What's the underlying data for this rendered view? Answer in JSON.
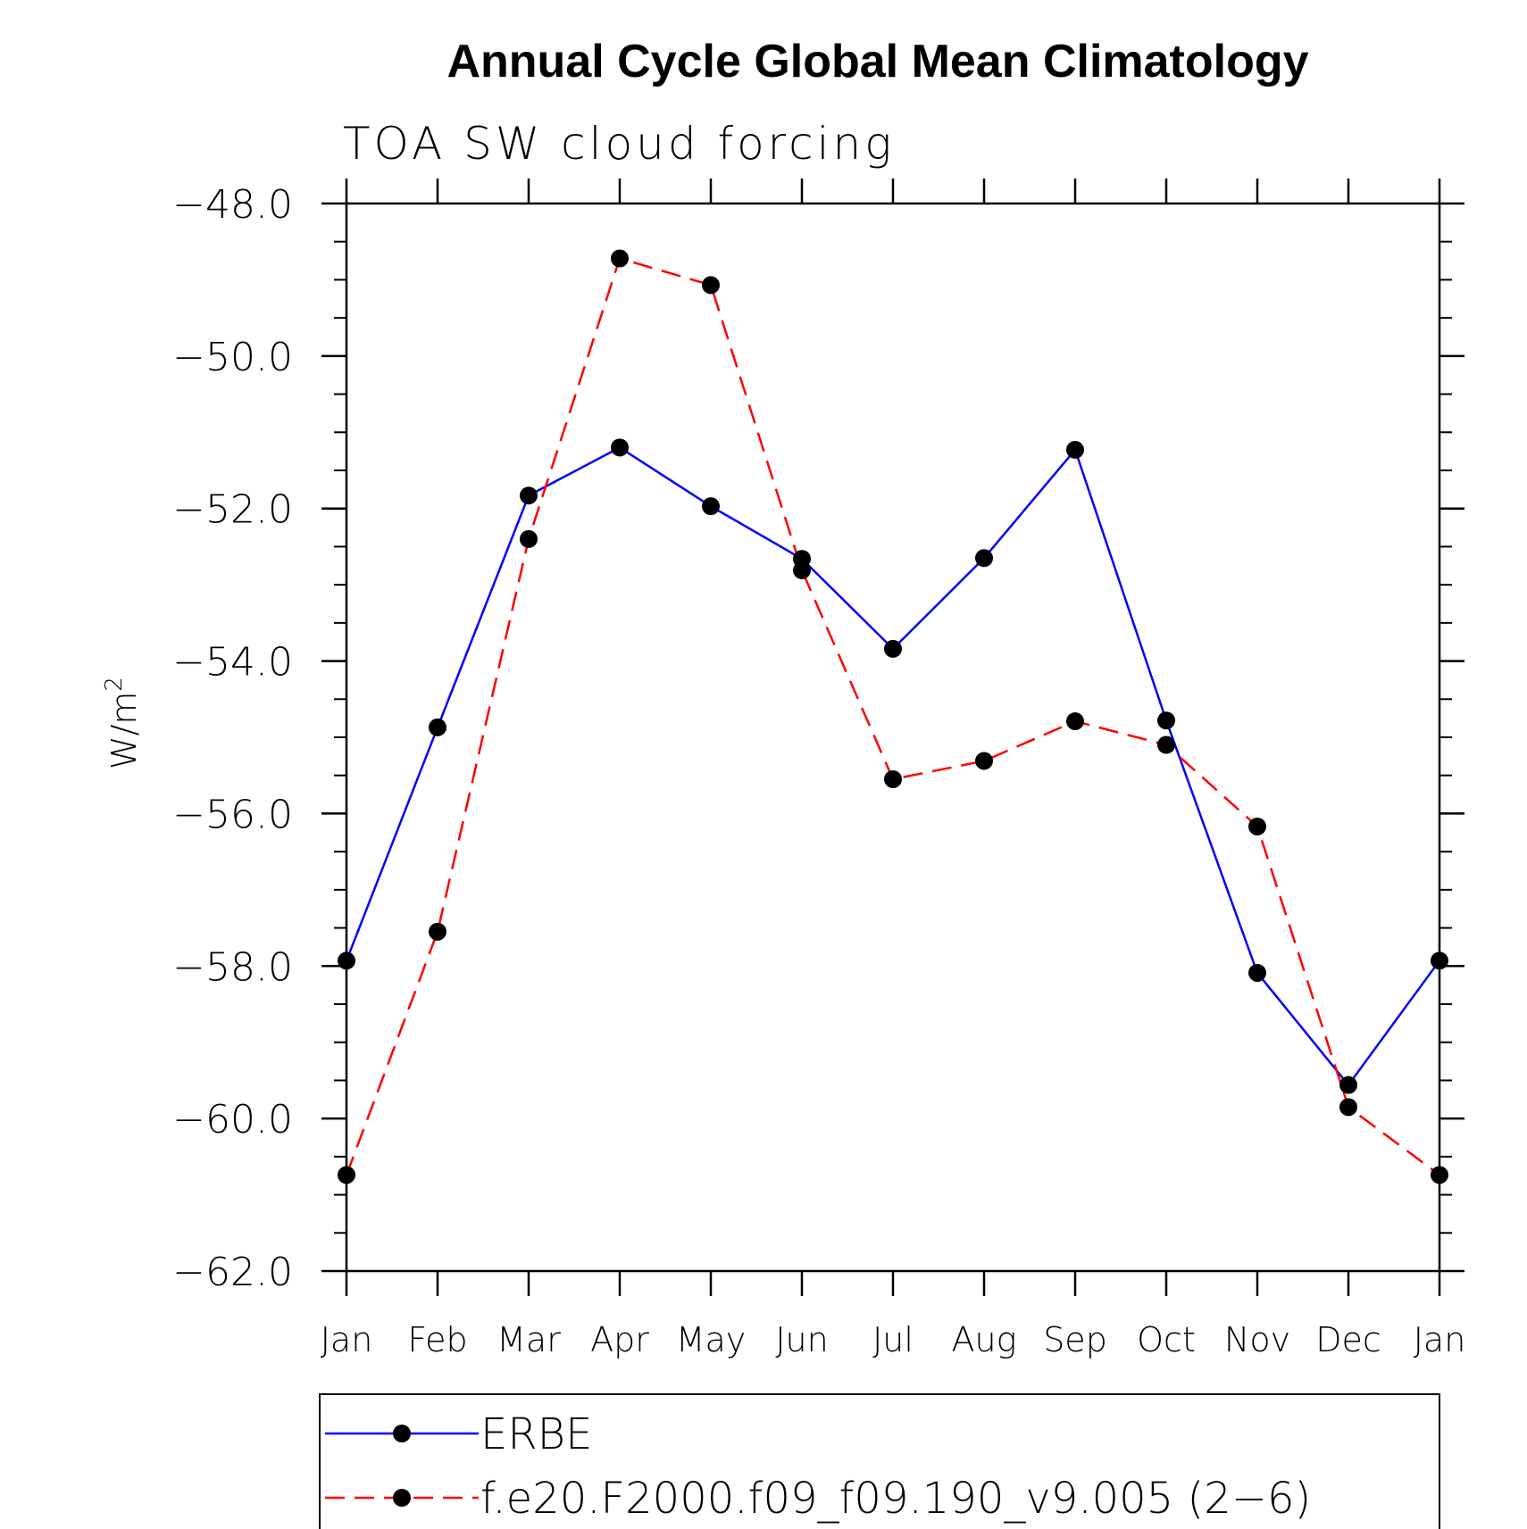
{
  "chart_data": {
    "type": "line",
    "title": "Annual Cycle Global Mean Climatology",
    "subtitle": "TOA SW cloud forcing",
    "ylabel_base": "W/m",
    "ylabel_sup": "2",
    "xlabel": "",
    "ylim": [
      -62.0,
      -48.0
    ],
    "yticks": [
      -48.0,
      -50.0,
      -52.0,
      -54.0,
      -56.0,
      -58.0,
      -60.0,
      -62.0
    ],
    "ytick_labels": [
      "−48.0",
      "−50.0",
      "−52.0",
      "−54.0",
      "−56.0",
      "−58.0",
      "−60.0",
      "−62.0"
    ],
    "yminor_step": 0.5,
    "categories": [
      "Jan",
      "Feb",
      "Mar",
      "Apr",
      "May",
      "Jun",
      "Jul",
      "Aug",
      "Sep",
      "Oct",
      "Nov",
      "Dec",
      "Jan"
    ],
    "grid": false,
    "legend_position": "bottom",
    "series": [
      {
        "name": "ERBE",
        "color": "#0000ff",
        "dash": "solid",
        "marker": "filled-circle",
        "values": [
          -57.93,
          -54.87,
          -51.83,
          -51.2,
          -51.97,
          -52.66,
          -53.84,
          -52.65,
          -51.23,
          -54.78,
          -58.09,
          -59.56,
          -57.93
        ]
      },
      {
        "name": "f.e20.F2000.f09_f09.190_v9.005 (2−6)",
        "color": "#ff0000",
        "dash": "dashed",
        "marker": "filled-circle",
        "values": [
          -60.74,
          -57.55,
          -52.4,
          -48.72,
          -49.07,
          -52.81,
          -55.55,
          -55.31,
          -54.79,
          -55.1,
          -56.17,
          -59.85,
          -60.74
        ]
      }
    ]
  }
}
